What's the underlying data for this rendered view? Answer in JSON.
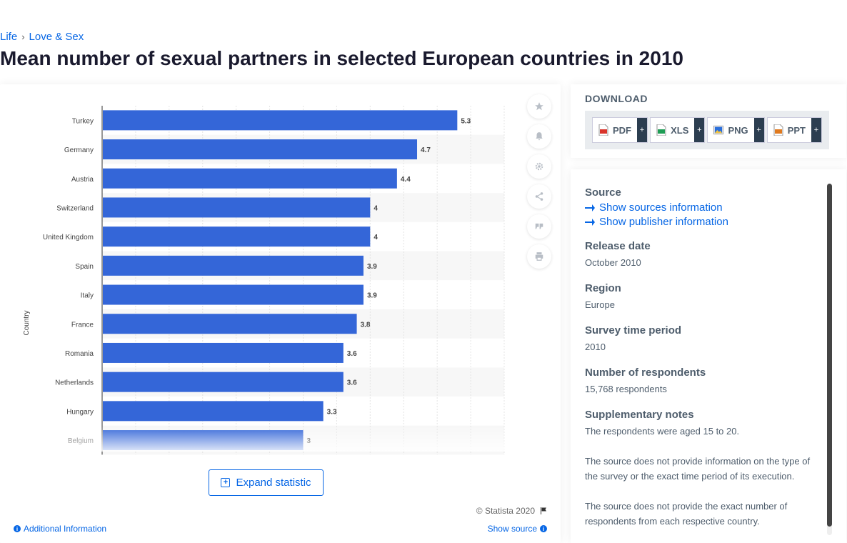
{
  "breadcrumb": {
    "items": [
      "Life",
      "Love & Sex"
    ],
    "separator": "›"
  },
  "page_title": "Mean number of sexual partners in selected European countries in 2010",
  "chart_data": {
    "type": "bar",
    "orientation": "horizontal",
    "categories": [
      "Turkey",
      "Germany",
      "Austria",
      "Switzerland",
      "United Kingdom",
      "Spain",
      "Italy",
      "France",
      "Romania",
      "Netherlands",
      "Hungary",
      "Belgium"
    ],
    "values": [
      5.3,
      4.7,
      4.4,
      4,
      4,
      3.9,
      3.9,
      3.8,
      3.6,
      3.6,
      3.3,
      3
    ],
    "value_labels": [
      "5.3",
      "4.7",
      "4.4",
      "4",
      "4",
      "3.9",
      "3.9",
      "3.8",
      "3.6",
      "3.6",
      "3.3",
      "3"
    ],
    "ylabel": "Country",
    "xlim": [
      0,
      6
    ],
    "grid": true,
    "bar_color": "#3466d8"
  },
  "tools": [
    "star-icon",
    "bell-icon",
    "gear-icon",
    "share-icon",
    "quote-icon",
    "print-icon"
  ],
  "expand_label": "Expand statistic",
  "copyright": "© Statista 2020",
  "additional_info_label": "Additional Information",
  "show_source_label": "Show source",
  "download": {
    "title": "DOWNLOAD",
    "formats": [
      {
        "label": "PDF",
        "icon": "pdf-file-icon",
        "color": "#d9342b"
      },
      {
        "label": "XLS",
        "icon": "xls-file-icon",
        "color": "#1f9d55"
      },
      {
        "label": "PNG",
        "icon": "png-file-icon",
        "color": "#2a6fdb"
      },
      {
        "label": "PPT",
        "icon": "ppt-file-icon",
        "color": "#e07a1f"
      }
    ],
    "plus": "+"
  },
  "info": {
    "source_label": "Source",
    "sources_link": "Show sources information",
    "publisher_link": "Show publisher information",
    "release_label": "Release date",
    "release_value": "October 2010",
    "region_label": "Region",
    "region_value": "Europe",
    "period_label": "Survey time period",
    "period_value": "2010",
    "respondents_label": "Number of respondents",
    "respondents_value": "15,768 respondents",
    "notes_label": "Supplementary notes",
    "notes": [
      "The respondents were aged 15 to 20.",
      "The source does not provide information on the type of the survey or the exact time period of its execution.",
      "The source does not provide the exact number of respondents from each respective country."
    ]
  },
  "colors": {
    "accent": "#0666e5",
    "bar": "#3466d8",
    "heading": "#4e5d6c"
  }
}
